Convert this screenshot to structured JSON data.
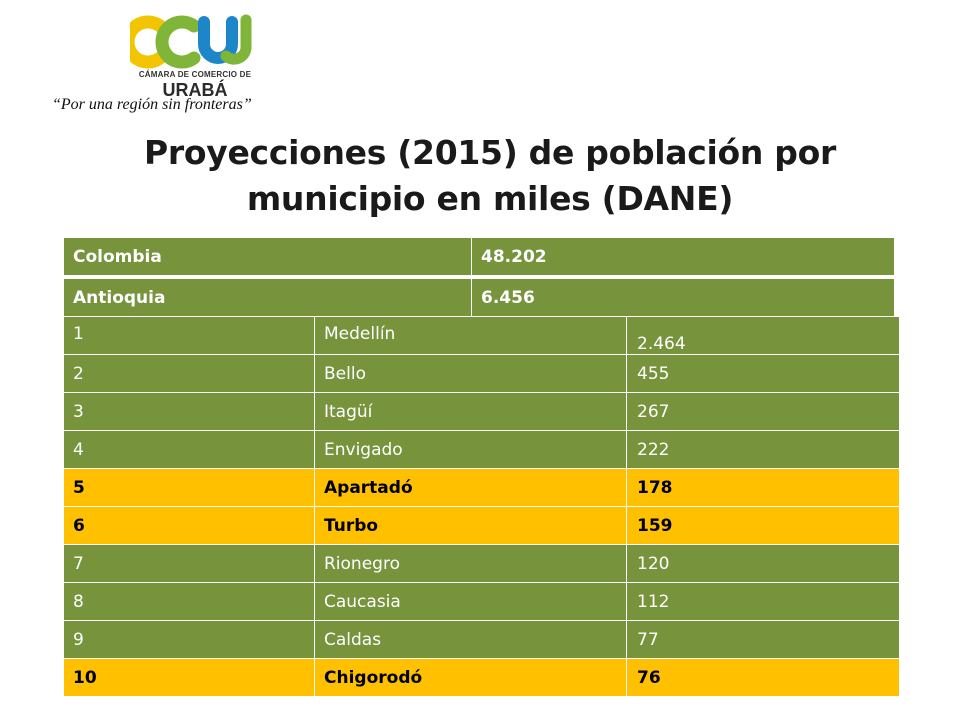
{
  "logo": {
    "sub": "CÁMARA DE COMERCIO DE",
    "name": "URABÁ",
    "colors": {
      "yellow": "#f2c500",
      "green": "#7fb539",
      "blue": "#1d86c8"
    }
  },
  "slogan": "“Por una región sin fronteras”",
  "title": "Proyecciones (2015) de población  por municipio en miles (DANE)",
  "summary": [
    {
      "label": "Colombia",
      "value": "48.202"
    },
    {
      "label": "Antioquia",
      "value": "6.456"
    }
  ],
  "ranking": [
    {
      "rank": "1",
      "municipio": "Medellín",
      "poblacion": "2.464",
      "highlight": false
    },
    {
      "rank": "2",
      "municipio": "Bello",
      "poblacion": "455",
      "highlight": false
    },
    {
      "rank": "3",
      "municipio": "Itagüí",
      "poblacion": "267",
      "highlight": false
    },
    {
      "rank": "4",
      "municipio": "Envigado",
      "poblacion": "222",
      "highlight": false
    },
    {
      "rank": "5",
      "municipio": "Apartadó",
      "poblacion": "178",
      "highlight": true
    },
    {
      "rank": "6",
      "municipio": "Turbo",
      "poblacion": "159",
      "highlight": true
    },
    {
      "rank": "7",
      "municipio": "Rionegro",
      "poblacion": "120",
      "highlight": false
    },
    {
      "rank": "8",
      "municipio": "Caucasia",
      "poblacion": "112",
      "highlight": false
    },
    {
      "rank": "9",
      "municipio": "Caldas",
      "poblacion": "77",
      "highlight": false
    },
    {
      "rank": "10",
      "municipio": "Chigorodó",
      "poblacion": "76",
      "highlight": true
    }
  ],
  "colors": {
    "table_green": "#77933c",
    "highlight_yellow": "#ffc000"
  }
}
